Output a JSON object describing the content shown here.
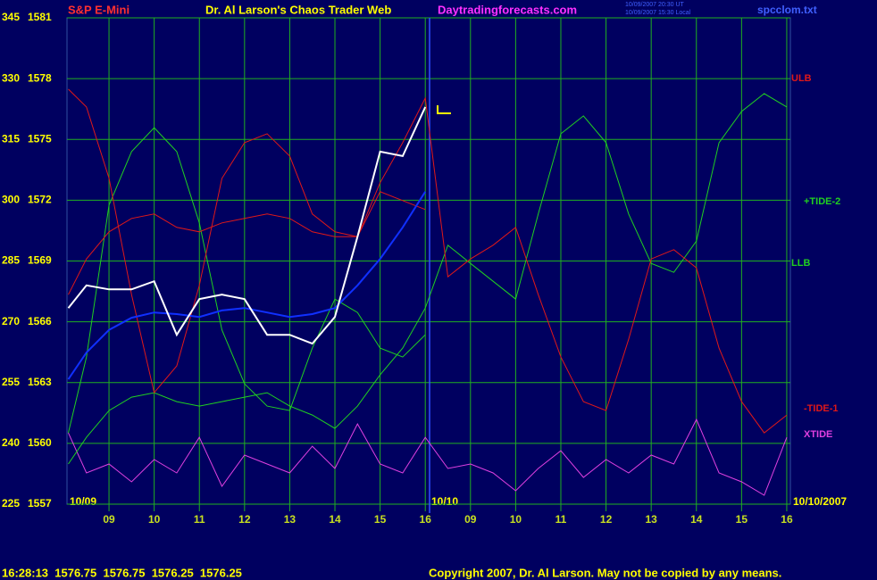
{
  "chart_data": {
    "type": "line",
    "title": "S&P E-Mini",
    "subtitle": "Dr. Al Larson's Chaos Trader Web",
    "source": "Daytradingforecasts.com",
    "timestamps": [
      "10/09/2007 20:30 UT",
      "10/09/2007 15:30 Local"
    ],
    "file": "spcclom.txt",
    "date_labels": [
      "10/09",
      "10/10",
      "10/10/2007"
    ],
    "status": "16:28:13  1576.75  1576.75  1576.25  1576.25",
    "copyright": "Copyright 2007, Dr. Al Larson. May not be copied by any means.",
    "grid": true,
    "xlim": [
      0.07,
      16.08
    ],
    "xticks": [
      {
        "value": 1,
        "label": "09"
      },
      {
        "value": 2,
        "label": "10"
      },
      {
        "value": 3,
        "label": "11"
      },
      {
        "value": 4,
        "label": "12"
      },
      {
        "value": 5,
        "label": "13"
      },
      {
        "value": 6,
        "label": "14"
      },
      {
        "value": 7,
        "label": "15"
      },
      {
        "value": 8,
        "label": "16"
      },
      {
        "value": 9,
        "label": "09"
      },
      {
        "value": 10,
        "label": "10"
      },
      {
        "value": 11,
        "label": "11"
      },
      {
        "value": 12,
        "label": "12"
      },
      {
        "value": 13,
        "label": "13"
      },
      {
        "value": 14,
        "label": "14"
      },
      {
        "value": 15,
        "label": "15"
      },
      {
        "value": 16,
        "label": "16"
      }
    ],
    "ylim": [
      225,
      345
    ],
    "yticks": [
      225,
      240,
      255,
      270,
      285,
      300,
      315,
      330,
      345
    ],
    "y2lim": [
      1557,
      1581
    ],
    "y2ticks": [
      1557,
      1560,
      1563,
      1566,
      1569,
      1572,
      1575,
      1578,
      1581
    ],
    "x": [
      0.1,
      0.5,
      1,
      1.5,
      2,
      2.5,
      3,
      3.5,
      4,
      4.5,
      5,
      5.5,
      6,
      6.5,
      7,
      7.5,
      8,
      8.5,
      9,
      9.5,
      10,
      10.5,
      11,
      11.5,
      12,
      12.5,
      13,
      13.5,
      14,
      14.5,
      15,
      15.5,
      16
    ],
    "series": [
      {
        "name": "XTIDE",
        "color": "#e040e0",
        "values": [
          242.6,
          232.7,
          234.9,
          230.5,
          236,
          232.7,
          241.5,
          229.4,
          237.1,
          234.9,
          232.7,
          239.3,
          233.8,
          244.8,
          234.9,
          232.7,
          241.5,
          233.8,
          234.9,
          232.7,
          228.3,
          233.8,
          238.2,
          231.6,
          236,
          232.7,
          237.1,
          234.9,
          245.9,
          232.7,
          230.5,
          227.2,
          241.5
        ]
      },
      {
        "name": "LLB",
        "color": "#20d020",
        "values": [
          242.6,
          261.3,
          298.8,
          312,
          317.9,
          312,
          294.4,
          268,
          254.7,
          249.2,
          248.1,
          263.5,
          275.6,
          272.3,
          263.5,
          261.3,
          266.8,
          null,
          null,
          null,
          null,
          null,
          null,
          null,
          null,
          null,
          null,
          null,
          null,
          null,
          null,
          null,
          null
        ]
      },
      {
        "name": "+TIDE-2",
        "color": "#20d020",
        "values": [
          234.9,
          241.5,
          248.1,
          251.4,
          252.5,
          250.3,
          249.2,
          250.3,
          251.4,
          252.5,
          249.2,
          247,
          243.7,
          249.2,
          256.9,
          263.5,
          273.4,
          288.9,
          284.4,
          280,
          275.6,
          296.6,
          316.4,
          320.8,
          314.2,
          296.6,
          284.4,
          282.2,
          289.9,
          314.2,
          321.9,
          326.3,
          323
        ]
      },
      {
        "name": "ULB",
        "color": "#e01818",
        "values": [
          327.4,
          323,
          305.4,
          276.7,
          252.5,
          259.1,
          279,
          305.4,
          314.2,
          316.4,
          310.9,
          296.6,
          292.2,
          291,
          302.1,
          299.9,
          297.7,
          null,
          null,
          null,
          null,
          null,
          null,
          null,
          null,
          null,
          null,
          null,
          null,
          null,
          null,
          null,
          null
        ]
      },
      {
        "name": "-TIDE-1",
        "color": "#e01818",
        "values": [
          276.7,
          285.5,
          292.2,
          295.5,
          296.6,
          293.3,
          292.2,
          294.4,
          295.5,
          296.6,
          295.5,
          292.2,
          291,
          291,
          304.3,
          314.2,
          325.2,
          281.1,
          285.5,
          288.9,
          293.3,
          276.7,
          261.3,
          250.3,
          248.1,
          265.7,
          285.5,
          287.8,
          283.3,
          263.5,
          250.3,
          242.6,
          247
        ]
      },
      {
        "color": "#1030ff",
        "values": [
          255.8,
          262.4,
          268,
          271,
          272.3,
          271.9,
          271.2,
          272.8,
          273.4,
          272.3,
          271.2,
          271.9,
          273.4,
          279,
          285.5,
          293.3,
          302.1,
          null,
          null,
          null,
          null,
          null,
          null,
          null,
          null,
          null,
          null,
          null,
          null,
          null,
          null,
          null,
          null
        ]
      },
      {
        "color": "#ffffff",
        "values": [
          273.4,
          279,
          278,
          278,
          280,
          266.8,
          275.6,
          276.7,
          275.6,
          266.8,
          266.8,
          264.6,
          271.2,
          291,
          312,
          310.9,
          323,
          null,
          null,
          null,
          null,
          null,
          null,
          null,
          null,
          null,
          null,
          null,
          null,
          null,
          null,
          null,
          null
        ]
      }
    ]
  }
}
